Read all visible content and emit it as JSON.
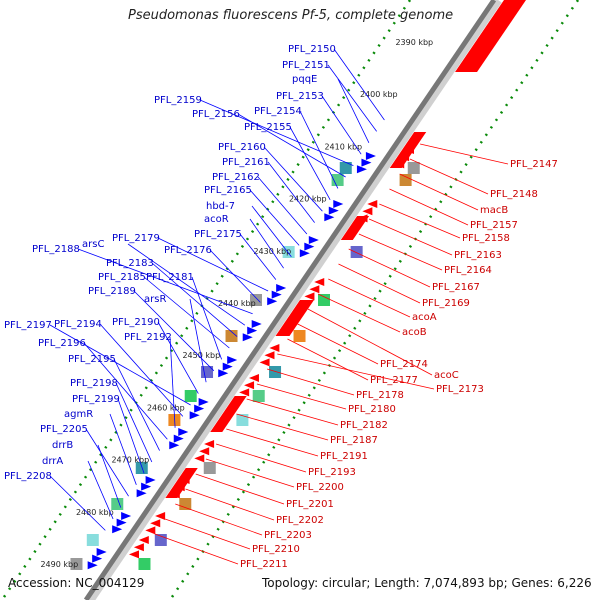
{
  "title": "Pseudomonas fluorescens Pf-5, complete genome",
  "footer": {
    "accession": "Accession: NC_004129",
    "topology": "Topology: circular; Length: 7,074,893 bp; Genes: 6,226"
  },
  "colors": {
    "forward_label": "#0000cc",
    "reverse_label": "#cc0000",
    "forward_feature": "#0000ff",
    "reverse_feature": "#ff0000",
    "backbone": "#777777"
  },
  "ticks": [
    "2390 kbp",
    "2400 kbp",
    "2410 kbp",
    "2420 kbp",
    "2430 kbp",
    "2440 kbp",
    "2450 kbp",
    "2460 kbp",
    "2470 kbp",
    "2480 kbp",
    "2490 kbp"
  ],
  "forward_labels": [
    "PFL_2150",
    "PFL_2151",
    "pqqE",
    "PFL_2153",
    "PFL_2159",
    "PFL_2156",
    "PFL_2154",
    "PFL_2155",
    "PFL_2160",
    "PFL_2161",
    "PFL_2162",
    "PFL_2165",
    "hbd-7",
    "acoR",
    "PFL_2175",
    "PFL_2179",
    "PFL_2176",
    "PFL_2188",
    "arsC",
    "PFL_2183",
    "PFL_2185",
    "PFL_2181",
    "PFL_2189",
    "arsR",
    "PFL_2190",
    "PFL_2197",
    "PFL_2194",
    "PFL_2192",
    "PFL_2196",
    "PFL_2195",
    "PFL_2198",
    "PFL_2199",
    "agmR",
    "PFL_2205",
    "drrB",
    "drrA",
    "PFL_2208"
  ],
  "reverse_labels": [
    "PFL_2147",
    "PFL_2148",
    "macB",
    "PFL_2157",
    "PFL_2158",
    "PFL_2163",
    "PFL_2164",
    "PFL_2167",
    "PFL_2169",
    "acoA",
    "acoB",
    "acoC",
    "PFL_2174",
    "PFL_2177",
    "PFL_2173",
    "PFL_2178",
    "PFL_2180",
    "PFL_2182",
    "PFL_2187",
    "PFL_2191",
    "PFL_2193",
    "PFL_2200",
    "PFL_2201",
    "PFL_2202",
    "PFL_2203",
    "PFL_2210",
    "PFL_2211"
  ]
}
